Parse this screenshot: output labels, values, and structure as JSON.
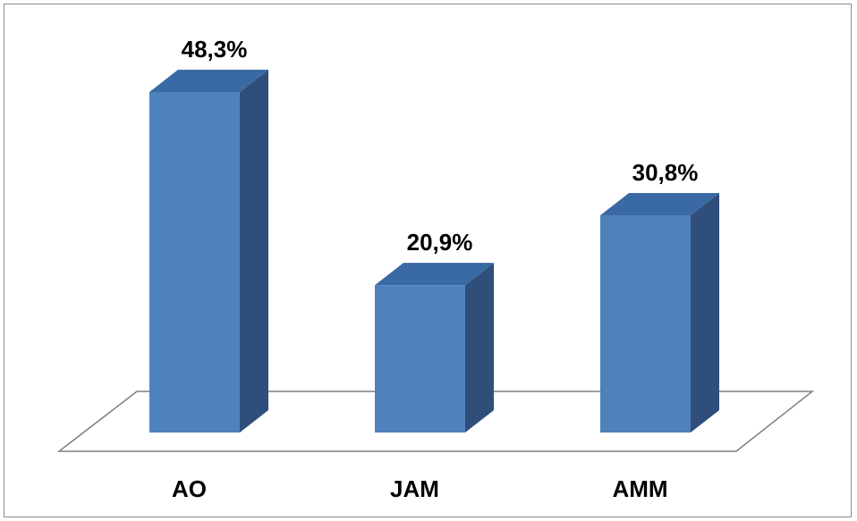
{
  "chart_data": {
    "type": "bar",
    "style": "3d-column",
    "categories": [
      "AO",
      "JAM",
      "AMM"
    ],
    "values": [
      48.3,
      20.9,
      30.8
    ],
    "data_labels": [
      "48,3%",
      "20,9%",
      "30,8%"
    ],
    "unit": "%",
    "title": "",
    "xlabel": "",
    "ylabel": "",
    "ylim": [
      0,
      50
    ],
    "grid": false,
    "legend": "none",
    "colors": {
      "front": "#4f81bd",
      "side": "#2f4f7a",
      "top": "#3a6aa3",
      "floor_stroke": "#7f7f7f",
      "border": "#8c8c8c"
    }
  }
}
